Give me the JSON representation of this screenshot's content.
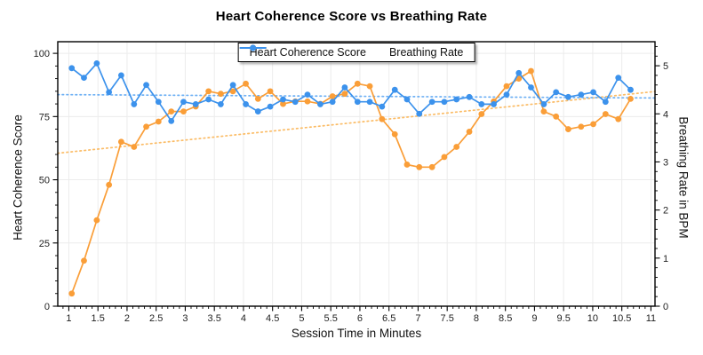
{
  "title": "Heart Coherence Score vs Breathing Rate",
  "chart_data": {
    "type": "line",
    "title": "Heart Coherence Score vs Breathing Rate",
    "xlabel": "Session Time in Minutes",
    "ylabel_left": "Heart Coherence Score",
    "ylabel_right": "Breathing Rate in BPM",
    "legend_position": "top-center",
    "grid": true,
    "xlim": [
      0.81,
      11.07
    ],
    "ylim_left": [
      0,
      104.6
    ],
    "ylim_right": [
      0,
      5.5
    ],
    "x": [
      1.05,
      1.26,
      1.48,
      1.69,
      1.9,
      2.12,
      2.33,
      2.54,
      2.76,
      2.97,
      3.18,
      3.4,
      3.61,
      3.82,
      4.04,
      4.25,
      4.46,
      4.68,
      4.89,
      5.1,
      5.32,
      5.53,
      5.74,
      5.96,
      6.17,
      6.38,
      6.6,
      6.81,
      7.02,
      7.24,
      7.45,
      7.66,
      7.88,
      8.09,
      8.3,
      8.52,
      8.73,
      8.94,
      9.16,
      9.37,
      9.58,
      9.8,
      10.01,
      10.22,
      10.44,
      10.65
    ],
    "series": [
      {
        "name": "Heart Coherence Score",
        "axis": "left",
        "color": "#FA9E38",
        "trend_color": "#FBBC66",
        "values": [
          5,
          18,
          34,
          48,
          65,
          63,
          71,
          73,
          77,
          77,
          79,
          85,
          84,
          85,
          88,
          82,
          85,
          80,
          81,
          81,
          80,
          83,
          84,
          88,
          87,
          74,
          68,
          56,
          55,
          55,
          59,
          63,
          69,
          76,
          81,
          87,
          90,
          93,
          77,
          75,
          70,
          71,
          72,
          76,
          74,
          82
        ]
      },
      {
        "name": "Breathing Rate",
        "axis": "right",
        "color": "#3C92EC",
        "trend_color": "#6EB0F4",
        "values": [
          4.95,
          4.75,
          5.05,
          4.45,
          4.8,
          4.2,
          4.6,
          4.25,
          3.85,
          4.25,
          4.2,
          4.3,
          4.2,
          4.6,
          4.2,
          4.05,
          4.15,
          4.3,
          4.25,
          4.4,
          4.2,
          4.25,
          4.55,
          4.25,
          4.25,
          4.15,
          4.5,
          4.3,
          4.0,
          4.25,
          4.25,
          4.3,
          4.35,
          4.2,
          4.2,
          4.4,
          4.85,
          4.55,
          4.2,
          4.45,
          4.35,
          4.4,
          4.45,
          4.25,
          4.75,
          4.5
        ]
      }
    ],
    "trendlines": [
      {
        "series": "Heart Coherence Score",
        "axis": "left",
        "style": "dotted",
        "x": [
          0.81,
          11.07
        ],
        "y": [
          60.5,
          84.9
        ]
      },
      {
        "series": "Breathing Rate",
        "axis": "right",
        "style": "dotted",
        "x": [
          0.81,
          11.07
        ],
        "y": [
          4.4,
          4.33
        ]
      }
    ],
    "x_ticks": {
      "major": [
        1,
        1.5,
        2,
        2.5,
        3,
        3.5,
        4,
        4.5,
        5,
        5.5,
        6,
        6.5,
        7,
        7.5,
        8,
        8.5,
        9,
        9.5,
        10,
        10.5,
        11
      ],
      "labels": [
        "1",
        "1.5",
        "2",
        "2.5",
        "3",
        "3.5",
        "4",
        "4.5",
        "5",
        "5.5",
        "6",
        "6.5",
        "7",
        "7.5",
        "8",
        "8.5",
        "9",
        "9.5",
        "10",
        "10.5",
        "11"
      ],
      "minor_step": 0.1
    },
    "y_left_ticks": {
      "major": [
        0,
        25,
        50,
        75,
        100
      ],
      "labels": [
        "0",
        "25",
        "50",
        "75",
        "100"
      ],
      "minor_step": 5
    },
    "y_right_ticks": {
      "major": [
        0,
        1,
        2,
        3,
        4,
        5
      ],
      "labels": [
        "0",
        "1",
        "2",
        "3",
        "4",
        "5"
      ],
      "minor_step": 0.2
    }
  },
  "colors": {
    "grid": "#ECECEC",
    "frame": "#000000",
    "tick": "#000000",
    "tick_label": "#1F1F1F"
  }
}
